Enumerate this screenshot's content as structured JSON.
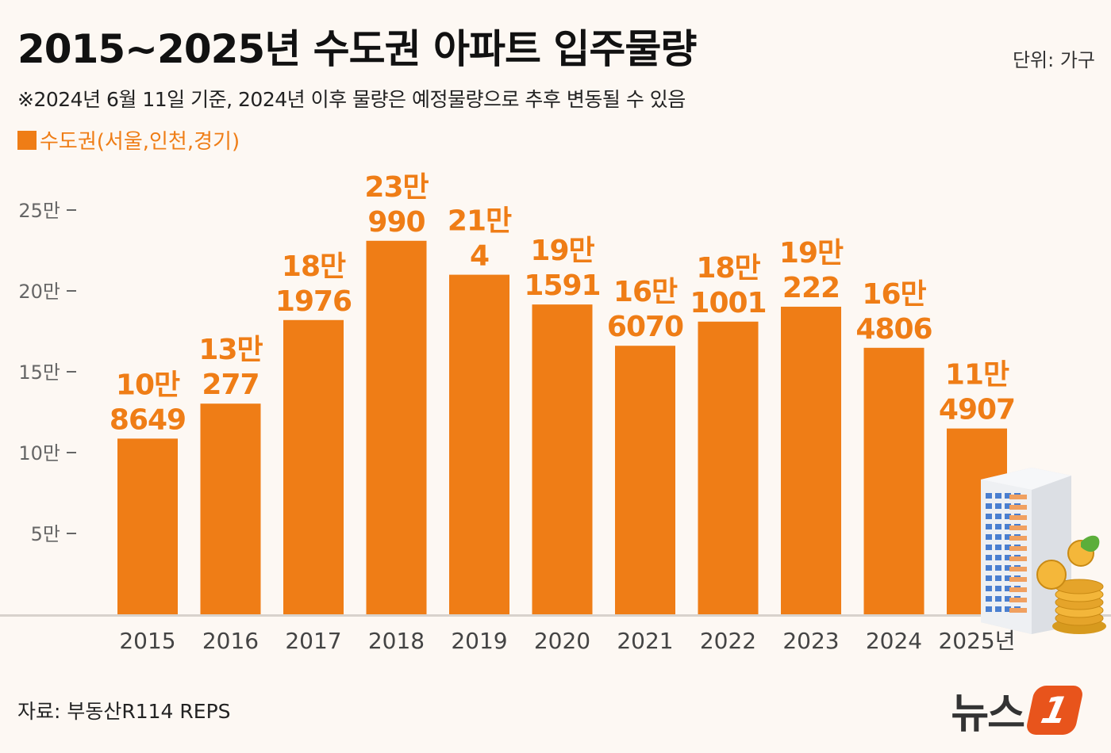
{
  "header": {
    "title": "2015~2025년 수도권 아파트 입주물량",
    "unit": "단위: 가구",
    "subtitle": "※2024년 6월 11일 기준, 2024년 이후 물량은 예정물량으로 추후 변동될 수 있음"
  },
  "footer": {
    "source": "자료: 부동산R114 REPS",
    "logo_text": "뉴스",
    "logo_badge": "1"
  },
  "colors": {
    "bar": "#ef7d16",
    "label": "#ef7d16",
    "axis": "#666666",
    "background": "#fdf8f3"
  },
  "icons": {
    "illustration": "apartment-building-with-coins-icon"
  },
  "chart_data": {
    "type": "bar",
    "title": "2015~2025년 수도권 아파트 입주물량",
    "series": [
      {
        "name": "수도권(서울,인천,경기)",
        "values": [
          108649,
          130277,
          181976,
          230990,
          210004,
          191591,
          166070,
          181001,
          190222,
          164806,
          114907
        ]
      }
    ],
    "categories": [
      "2015",
      "2016",
      "2017",
      "2018",
      "2019",
      "2020",
      "2021",
      "2022",
      "2023",
      "2024",
      "2025년"
    ],
    "value_labels": [
      [
        "10만",
        "8649"
      ],
      [
        "13만",
        "277"
      ],
      [
        "18만",
        "1976"
      ],
      [
        "23만",
        "990"
      ],
      [
        "21만",
        "4"
      ],
      [
        "19만",
        "1591"
      ],
      [
        "16만",
        "6070"
      ],
      [
        "18만",
        "1001"
      ],
      [
        "19만",
        "222"
      ],
      [
        "16만",
        "4806"
      ],
      [
        "11만",
        "4907"
      ]
    ],
    "yticks": [
      50000,
      100000,
      150000,
      200000,
      250000
    ],
    "ytick_labels": [
      "5만",
      "10만",
      "15만",
      "20만",
      "25만"
    ],
    "ylim": [
      0,
      250000
    ],
    "grid": false,
    "legend": "top-left"
  }
}
